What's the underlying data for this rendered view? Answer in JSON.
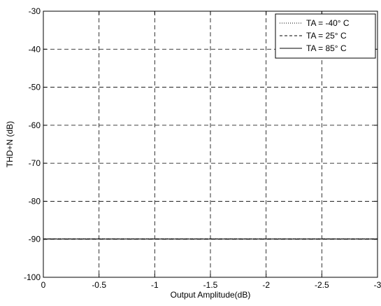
{
  "chart_data": {
    "type": "line",
    "title": "",
    "xlabel": "Output Amplitude(dB)",
    "ylabel": "THD+N (dB)",
    "xlim": [
      0,
      -3
    ],
    "ylim": [
      -100,
      -30
    ],
    "x_ticks": [
      "0",
      "-0.5",
      "-1",
      "-1.5",
      "-2",
      "-2.5",
      "-3"
    ],
    "y_ticks": [
      "-30",
      "-40",
      "-50",
      "-60",
      "-70",
      "-80",
      "-90",
      "-100"
    ],
    "grid": true,
    "legend_position": "top-right",
    "series": [
      {
        "name": "TA = -40° C",
        "style": "dotted",
        "x": [
          0,
          -3
        ],
        "y": [
          -89.9,
          -89.9
        ]
      },
      {
        "name": "TA = 25° C",
        "style": "dashed",
        "x": [
          0,
          -3
        ],
        "y": [
          -89.9,
          -89.9
        ]
      },
      {
        "name": "TA = 85° C",
        "style": "solid",
        "x": [
          0,
          -3
        ],
        "y": [
          -89.9,
          -89.9
        ]
      }
    ]
  }
}
